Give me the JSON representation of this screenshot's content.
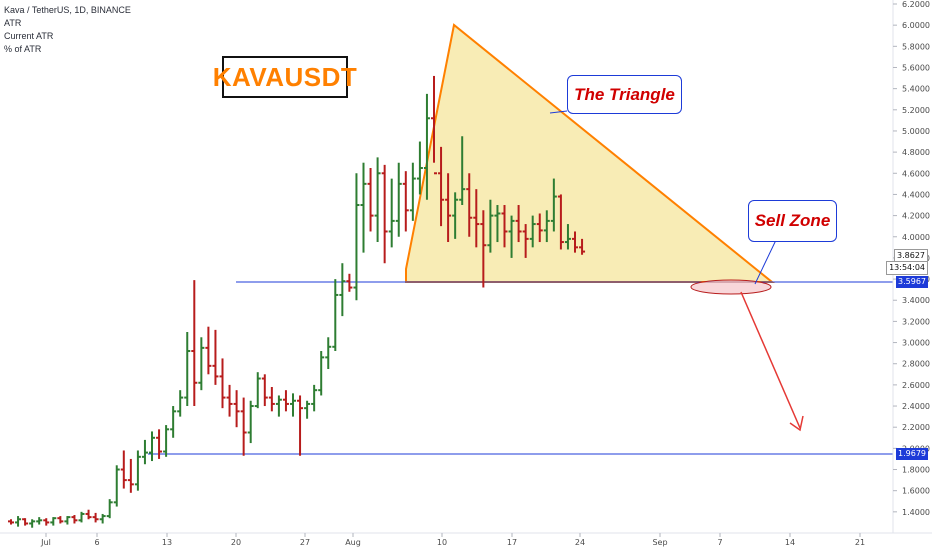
{
  "header": {
    "symbol_line": "Kava / TetherUS, 1D, BINANCE",
    "indicator1": "ATR",
    "indicator2": "Current ATR",
    "indicator3": "% of ATR"
  },
  "annotations": {
    "logo_text": "KAVAUSDT",
    "triangle_label": "The Triangle",
    "sell_zone_label": "Sell Zone"
  },
  "price_tags": {
    "last_price": "3.8627",
    "countdown": "13:54:04",
    "resistance_level": "3.5967",
    "support_level": "1.9679"
  },
  "colors": {
    "up": "#2e7d32",
    "down": "#b71c1c",
    "triangle_stroke": "#ff8000",
    "triangle_fill": "#f7e9a8",
    "level_line": "#1d3bd8",
    "arrow": "#e53935"
  },
  "chart_data": {
    "type": "ohlc",
    "title": "Kava / TetherUS, 1D, BINANCE",
    "ylim": [
      1.2,
      6.2
    ],
    "y_ticks": [
      "1.4000",
      "1.6000",
      "1.8000",
      "2.0000",
      "2.2000",
      "2.4000",
      "2.6000",
      "2.8000",
      "3.0000",
      "3.2000",
      "3.4000",
      "3.6000",
      "3.8000",
      "4.0000",
      "4.2000",
      "4.4000",
      "4.6000",
      "4.8000",
      "5.0000",
      "5.2000",
      "5.4000",
      "5.6000",
      "5.8000",
      "6.0000",
      "6.2000"
    ],
    "x_ticks": [
      "Jul",
      "6",
      "13",
      "20",
      "27",
      "Aug",
      "10",
      "17",
      "24",
      "Sep",
      "7",
      "14",
      "21"
    ],
    "levels": [
      3.5967,
      1.9679
    ],
    "triangle": {
      "apex": [
        6.02
      ],
      "upper_right": [
        3.59
      ],
      "base": 3.59
    },
    "bars": [
      [
        1.31,
        1.33,
        1.28,
        1.3
      ],
      [
        1.3,
        1.36,
        1.26,
        1.33
      ],
      [
        1.33,
        1.34,
        1.27,
        1.29
      ],
      [
        1.29,
        1.33,
        1.25,
        1.31
      ],
      [
        1.31,
        1.35,
        1.28,
        1.32
      ],
      [
        1.32,
        1.34,
        1.27,
        1.3
      ],
      [
        1.3,
        1.35,
        1.27,
        1.34
      ],
      [
        1.34,
        1.36,
        1.29,
        1.31
      ],
      [
        1.31,
        1.36,
        1.28,
        1.35
      ],
      [
        1.35,
        1.37,
        1.29,
        1.32
      ],
      [
        1.32,
        1.4,
        1.3,
        1.38
      ],
      [
        1.38,
        1.42,
        1.33,
        1.35
      ],
      [
        1.35,
        1.39,
        1.3,
        1.33
      ],
      [
        1.33,
        1.38,
        1.29,
        1.36
      ],
      [
        1.36,
        1.52,
        1.34,
        1.49
      ],
      [
        1.49,
        1.84,
        1.45,
        1.8
      ],
      [
        1.8,
        1.98,
        1.62,
        1.7
      ],
      [
        1.7,
        1.9,
        1.58,
        1.66
      ],
      [
        1.66,
        1.98,
        1.6,
        1.92
      ],
      [
        1.92,
        2.08,
        1.85,
        1.96
      ],
      [
        1.96,
        2.16,
        1.88,
        2.1
      ],
      [
        2.1,
        2.18,
        1.9,
        1.97
      ],
      [
        1.97,
        2.22,
        1.92,
        2.18
      ],
      [
        2.18,
        2.4,
        2.1,
        2.35
      ],
      [
        2.35,
        2.55,
        2.3,
        2.48
      ],
      [
        2.48,
        3.1,
        2.4,
        2.92
      ],
      [
        2.92,
        3.59,
        2.4,
        2.62
      ],
      [
        2.62,
        3.05,
        2.55,
        2.95
      ],
      [
        2.95,
        3.15,
        2.7,
        2.78
      ],
      [
        2.78,
        3.12,
        2.6,
        2.68
      ],
      [
        2.68,
        2.85,
        2.38,
        2.48
      ],
      [
        2.48,
        2.6,
        2.3,
        2.42
      ],
      [
        2.42,
        2.55,
        2.2,
        2.35
      ],
      [
        2.35,
        2.48,
        1.93,
        2.15
      ],
      [
        2.15,
        2.45,
        2.05,
        2.4
      ],
      [
        2.4,
        2.72,
        2.38,
        2.66
      ],
      [
        2.66,
        2.7,
        2.4,
        2.48
      ],
      [
        2.48,
        2.58,
        2.35,
        2.42
      ],
      [
        2.42,
        2.5,
        2.3,
        2.46
      ],
      [
        2.46,
        2.55,
        2.35,
        2.42
      ],
      [
        2.42,
        2.52,
        2.3,
        2.45
      ],
      [
        2.45,
        2.5,
        1.93,
        2.38
      ],
      [
        2.38,
        2.45,
        2.28,
        2.42
      ],
      [
        2.42,
        2.6,
        2.35,
        2.55
      ],
      [
        2.55,
        2.92,
        2.5,
        2.86
      ],
      [
        2.86,
        3.05,
        2.75,
        2.96
      ],
      [
        2.96,
        3.6,
        2.92,
        3.45
      ],
      [
        3.45,
        3.75,
        3.25,
        3.58
      ],
      [
        3.58,
        3.65,
        3.48,
        3.52
      ],
      [
        3.52,
        4.6,
        3.4,
        4.3
      ],
      [
        4.3,
        4.7,
        3.85,
        4.5
      ],
      [
        4.5,
        4.65,
        4.05,
        4.2
      ],
      [
        4.2,
        4.75,
        3.95,
        4.6
      ],
      [
        4.6,
        4.68,
        3.75,
        4.05
      ],
      [
        4.05,
        4.55,
        3.9,
        4.15
      ],
      [
        4.15,
        4.7,
        4.0,
        4.5
      ],
      [
        4.5,
        4.62,
        4.05,
        4.25
      ],
      [
        4.25,
        4.7,
        4.15,
        4.55
      ],
      [
        4.55,
        4.9,
        4.4,
        4.65
      ],
      [
        4.65,
        5.35,
        4.35,
        5.12
      ],
      [
        5.12,
        5.52,
        4.7,
        4.6
      ],
      [
        4.6,
        4.85,
        4.1,
        4.35
      ],
      [
        4.35,
        4.6,
        3.95,
        4.2
      ],
      [
        4.2,
        4.42,
        3.98,
        4.35
      ],
      [
        4.35,
        4.95,
        4.3,
        4.45
      ],
      [
        4.45,
        4.6,
        4.0,
        4.18
      ],
      [
        4.18,
        4.45,
        3.9,
        4.12
      ],
      [
        4.12,
        4.25,
        3.52,
        3.92
      ],
      [
        3.92,
        4.35,
        3.85,
        4.2
      ],
      [
        4.2,
        4.3,
        3.95,
        4.22
      ],
      [
        4.22,
        4.3,
        3.9,
        4.05
      ],
      [
        4.05,
        4.2,
        3.8,
        4.15
      ],
      [
        4.15,
        4.3,
        3.95,
        4.05
      ],
      [
        4.05,
        4.12,
        3.8,
        3.98
      ],
      [
        3.98,
        4.2,
        3.9,
        4.12
      ],
      [
        4.12,
        4.22,
        3.95,
        4.06
      ],
      [
        4.06,
        4.25,
        3.95,
        4.15
      ],
      [
        4.15,
        4.55,
        4.05,
        4.38
      ],
      [
        4.38,
        4.4,
        3.88,
        3.95
      ],
      [
        3.95,
        4.12,
        3.88,
        3.98
      ],
      [
        3.98,
        4.05,
        3.85,
        3.9
      ],
      [
        3.9,
        3.98,
        3.83,
        3.86
      ]
    ]
  }
}
